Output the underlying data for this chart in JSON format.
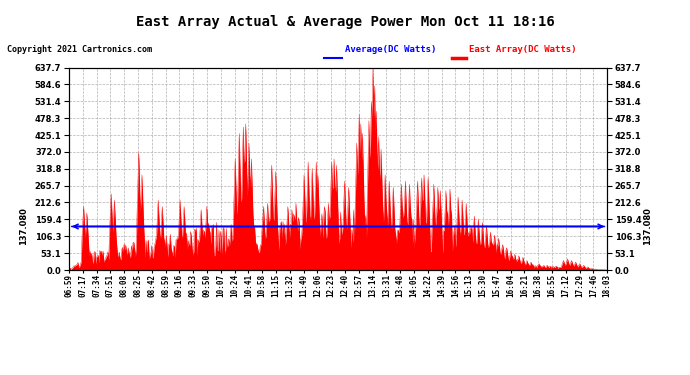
{
  "title": "East Array Actual & Average Power Mon Oct 11 18:16",
  "copyright": "Copyright 2021 Cartronics.com",
  "avg_label": "137.080",
  "average_value": 137.08,
  "ymax": 637.7,
  "ymin": 0.0,
  "yticks": [
    0.0,
    53.1,
    106.3,
    159.4,
    212.6,
    265.7,
    318.8,
    372.0,
    425.1,
    478.3,
    531.4,
    584.6,
    637.7
  ],
  "fill_color": "#ff0000",
  "line_color": "#ff0000",
  "avg_line_color": "#0000ff",
  "background_color": "#ffffff",
  "grid_color": "#aaaaaa",
  "legend_avg_color": "#0000ff",
  "legend_east_color": "#ff0000",
  "legend_avg_label": "Average(DC Watts)",
  "legend_east_label": "East Array(DC Watts)",
  "xtick_labels": [
    "06:59",
    "07:17",
    "07:34",
    "07:51",
    "08:08",
    "08:25",
    "08:42",
    "08:59",
    "09:16",
    "09:33",
    "09:50",
    "10:07",
    "10:24",
    "10:41",
    "10:58",
    "11:15",
    "11:32",
    "11:49",
    "12:06",
    "12:23",
    "12:40",
    "12:57",
    "13:14",
    "13:31",
    "13:48",
    "14:05",
    "14:22",
    "14:39",
    "14:56",
    "15:13",
    "15:30",
    "15:47",
    "16:04",
    "16:21",
    "16:38",
    "16:55",
    "17:12",
    "17:29",
    "17:46",
    "18:03"
  ],
  "figwidth": 6.9,
  "figheight": 3.75,
  "dpi": 100
}
